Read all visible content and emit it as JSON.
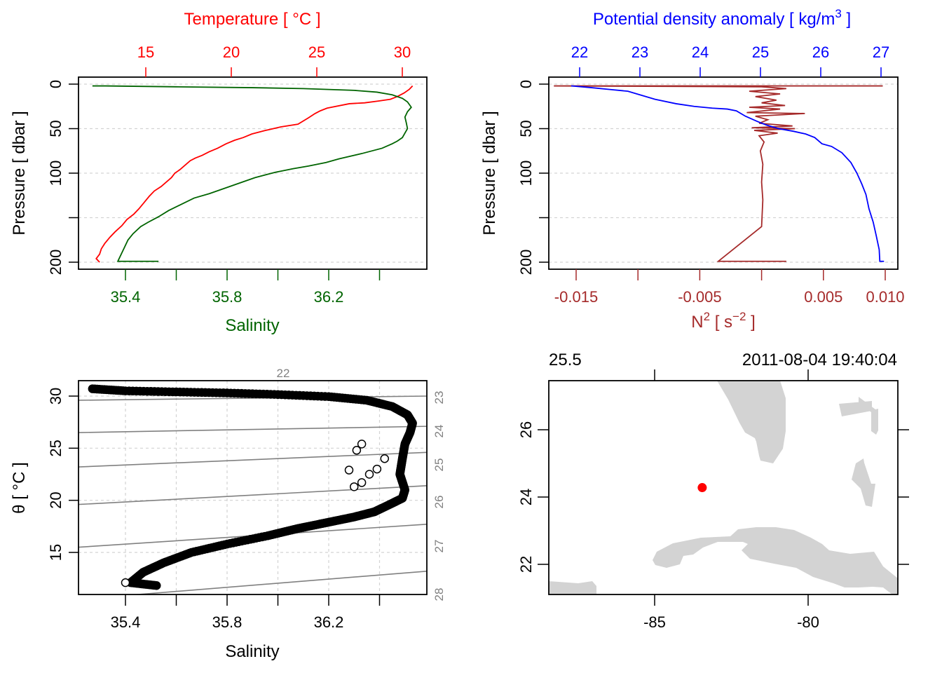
{
  "colors": {
    "temperature": "#ff0000",
    "salinity": "#006400",
    "density": "#0000ff",
    "n2": "#a52a2a",
    "grid": "#d3d3d3",
    "isopycnal": "#808080",
    "land": "#d3d3d3",
    "station": "#ff0000",
    "axis": "#000000"
  },
  "chart_data": [
    {
      "id": "profile_TS",
      "type": "line",
      "title": "",
      "ylabel": "Pressure [ dbar ]",
      "ylim": [
        200,
        0
      ],
      "yticks": [
        0,
        50,
        100,
        150,
        200
      ],
      "ytick_labels": [
        "0",
        "50",
        "100",
        "",
        "200"
      ],
      "grid": true,
      "top_axis": {
        "label": "Temperature [ °C ]",
        "ticks": [
          15,
          20,
          25,
          30
        ],
        "tick_labels": [
          "15",
          "20",
          "25",
          "30"
        ],
        "lim": [
          11.05,
          31.4
        ]
      },
      "bottom_axis": {
        "label": "Salinity",
        "ticks": [
          35.4,
          35.6,
          35.8,
          36.0,
          36.2,
          36.4
        ],
        "tick_labels": [
          "35.4",
          "",
          "35.8",
          "",
          "36.2",
          ""
        ],
        "lim": [
          35.216,
          36.585
        ]
      },
      "series": [
        {
          "name": "Temperature",
          "axis": "top",
          "x": [
            30.6,
            30.4,
            30.1,
            29.7,
            29.3,
            28.6,
            27.8,
            26.9,
            25.6,
            25.2,
            24.9,
            24.5,
            23.9,
            22.9,
            22.0,
            21.2,
            20.7,
            20.2,
            19.7,
            19.2,
            18.7,
            18.3,
            17.9,
            17.6,
            17.3,
            17.0,
            16.7,
            16.5,
            16.2,
            15.9,
            15.5,
            15.2,
            14.9,
            14.6,
            14.3,
            13.9,
            13.6,
            13.2,
            12.9,
            12.6,
            12.4,
            12.3,
            12.1,
            12.3
          ],
          "y": [
            2,
            6,
            10,
            14,
            17,
            19,
            21,
            22,
            27,
            30,
            33,
            38,
            45,
            48,
            52,
            56,
            60,
            63,
            67,
            72,
            76,
            80,
            83,
            86,
            91,
            96,
            100,
            105,
            110,
            115,
            120,
            126,
            133,
            140,
            146,
            152,
            159,
            166,
            172,
            179,
            185,
            191,
            196,
            200
          ]
        },
        {
          "name": "Salinity",
          "axis": "bottom",
          "x": [
            35.27,
            35.32,
            35.6,
            35.9,
            36.1,
            36.2,
            36.3,
            36.39,
            36.45,
            36.49,
            36.51,
            36.525,
            36.51,
            36.5,
            36.505,
            36.51,
            36.5,
            36.49,
            36.47,
            36.45,
            36.41,
            36.33,
            36.24,
            36.19,
            36.12,
            36.06,
            35.99,
            35.91,
            35.85,
            35.79,
            35.73,
            35.67,
            35.62,
            35.57,
            35.53,
            35.49,
            35.46,
            35.43,
            35.41,
            35.37,
            35.43,
            35.53
          ],
          "y": [
            2,
            2,
            3,
            4,
            5,
            6,
            7,
            9,
            12,
            16,
            20,
            26,
            31,
            37,
            43,
            50,
            55,
            60,
            64,
            67,
            72,
            78,
            84,
            88,
            92,
            95,
            99,
            105,
            111,
            117,
            123,
            128,
            135,
            142,
            149,
            155,
            160,
            168,
            175,
            199,
            199,
            199
          ]
        }
      ]
    },
    {
      "id": "profile_density_N2",
      "type": "line",
      "ylabel": "Pressure [ dbar ]",
      "ylim": [
        200,
        0
      ],
      "yticks": [
        0,
        50,
        100,
        150,
        200
      ],
      "ytick_labels": [
        "0",
        "50",
        "100",
        "",
        "200"
      ],
      "grid": true,
      "top_axis": {
        "label": "Potential density anomaly [ kg/m³ ]",
        "ticks": [
          22,
          23,
          24,
          25,
          26,
          27
        ],
        "tick_labels": [
          "22",
          "23",
          "24",
          "25",
          "26",
          "27"
        ],
        "lim": [
          21.66,
          27.22
        ]
      },
      "bottom_axis": {
        "label": "N² [ s⁻² ]",
        "ticks": [
          -0.015,
          -0.01,
          -0.005,
          0,
          0.005,
          0.01
        ],
        "tick_labels": [
          "-0.015",
          "",
          "-0.005",
          "",
          "0.005",
          "0.010"
        ],
        "lim": [
          -0.01757,
          0.01066
        ]
      },
      "series": [
        {
          "name": "Potential density anomaly",
          "axis": "top",
          "x": [
            21.86,
            22.2,
            22.5,
            22.8,
            23.0,
            23.25,
            23.6,
            23.9,
            24.2,
            24.45,
            24.6,
            24.75,
            24.95,
            25.1,
            25.3,
            25.55,
            25.75,
            25.9,
            26.02,
            26.18,
            26.35,
            26.5,
            26.6,
            26.68,
            26.75,
            26.8,
            26.87,
            26.92,
            26.97,
            26.98,
            27.05
          ],
          "y": [
            2,
            4,
            6,
            8,
            12,
            17,
            22,
            25,
            27,
            28,
            30,
            36,
            42,
            46,
            50,
            53,
            56,
            60,
            67,
            70,
            77,
            88,
            100,
            112,
            124,
            140,
            155,
            170,
            186,
            199,
            199
          ]
        },
        {
          "name": "N²",
          "axis": "bottom",
          "x": [
            0.0098,
            -0.0168,
            0.0,
            0.002,
            -0.001,
            0.0015,
            -0.0005,
            0.0012,
            0.0,
            0.0019,
            -0.001,
            0.0015,
            -0.0012,
            0.0035,
            -0.0005,
            0.0005,
            -0.0002,
            0.0025,
            -0.0008,
            0.0027,
            -0.0006,
            0.0013,
            -0.0002,
            0.0002,
            -0.0001,
            0.0001,
            0.0,
            0.0001,
            0.0,
            -0.0035,
            0.002,
            0.0
          ],
          "y": [
            2,
            2,
            3,
            5,
            8,
            11,
            14,
            18,
            21,
            24,
            26,
            28,
            32,
            33,
            36,
            40,
            44,
            47,
            49,
            50,
            52,
            55,
            58,
            65,
            75,
            90,
            110,
            130,
            160,
            199,
            199,
            199
          ]
        }
      ]
    },
    {
      "id": "TS_diagram",
      "type": "scatter",
      "xlabel": "Salinity",
      "ylabel": "θ [ °C ]",
      "xlim": [
        35.216,
        36.585
      ],
      "ylim": [
        11.0,
        31.5
      ],
      "xticks": [
        35.4,
        35.6,
        35.8,
        36.0,
        36.2,
        36.4
      ],
      "xtick_labels": [
        "35.4",
        "",
        "35.8",
        "",
        "36.2",
        ""
      ],
      "yticks": [
        15,
        20,
        25,
        30
      ],
      "ytick_labels": [
        "15",
        "20",
        "25",
        "30"
      ],
      "grid": true,
      "isopycnals": {
        "values": [
          22,
          23,
          24,
          25,
          26,
          27,
          28
        ],
        "labels": [
          "22",
          "23",
          "24",
          "25",
          "26",
          "27",
          "28"
        ]
      },
      "series": [
        {
          "name": "profile",
          "x": [
            35.27,
            35.4,
            35.6,
            35.8,
            36.0,
            36.2,
            36.35,
            36.45,
            36.51,
            36.53,
            36.52,
            36.5,
            36.49,
            36.48,
            36.5,
            36.49,
            36.44,
            36.38,
            36.3,
            36.2,
            36.08,
            35.96,
            35.8,
            35.66,
            35.55,
            35.47,
            35.42,
            35.53
          ],
          "y": [
            30.7,
            30.5,
            30.4,
            30.3,
            30.15,
            29.95,
            29.6,
            29.0,
            28.2,
            27.4,
            26.5,
            25.4,
            24.0,
            22.5,
            21.0,
            20.2,
            19.6,
            18.9,
            18.4,
            17.9,
            17.3,
            16.6,
            15.8,
            15.0,
            14.0,
            13.1,
            12.1,
            11.8
          ]
        }
      ],
      "outliers": {
        "x": [
          36.33,
          36.31,
          36.28,
          36.33,
          36.36,
          36.39,
          36.3,
          36.42
        ],
        "y": [
          25.4,
          24.8,
          22.9,
          21.7,
          22.5,
          23.0,
          21.3,
          24.0
        ]
      }
    },
    {
      "id": "station_map",
      "type": "scatter",
      "title_left": "25.5",
      "title_right": "2011-08-04 19:40:04",
      "xlim": [
        -88.45,
        -77.05
      ],
      "ylim": [
        21.15,
        27.5
      ],
      "xticks": [
        -85,
        -80
      ],
      "xtick_labels": [
        "-85",
        "-80"
      ],
      "yticks": [
        22,
        24,
        26
      ],
      "ytick_labels": [
        "22",
        "24",
        "26"
      ],
      "station": {
        "lon": -83.45,
        "lat": 24.28
      }
    }
  ]
}
